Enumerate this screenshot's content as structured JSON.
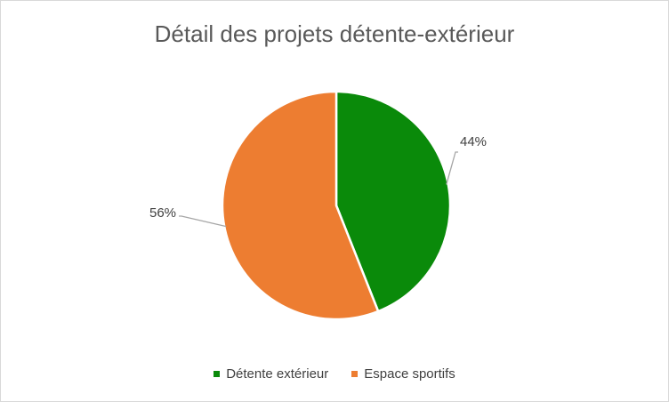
{
  "chart_data": {
    "type": "pie",
    "title": "Détail des projets détente-extérieur",
    "categories": [
      "Détente extérieur",
      "Espace sportifs"
    ],
    "values": [
      44,
      56
    ],
    "data_labels": [
      "44%",
      "56%"
    ],
    "colors": [
      "#0a8a0a",
      "#ed7d31"
    ],
    "start_angle_deg": 0,
    "direction": "clockwise",
    "legend_position": "bottom"
  }
}
